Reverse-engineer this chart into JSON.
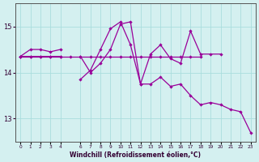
{
  "xlabel": "Windchill (Refroidissement éolien,°C)",
  "background_color": "#d4f0f0",
  "grid_color": "#aadddd",
  "line_color": "#990099",
  "x_all": [
    0,
    1,
    2,
    3,
    4,
    5,
    6,
    7,
    8,
    9,
    10,
    11,
    12,
    13,
    14,
    15,
    16,
    17,
    18,
    19,
    20,
    21,
    22,
    23
  ],
  "line_flat": [
    14.35,
    14.35,
    14.35,
    14.35,
    14.35,
    14.35,
    14.35,
    14.35,
    14.35,
    14.35,
    14.35,
    14.35,
    14.35,
    14.35,
    14.35,
    14.35,
    14.35,
    14.35,
    14.35,
    null,
    null,
    null,
    null,
    null
  ],
  "line_zigzag": [
    14.35,
    14.5,
    14.5,
    14.45,
    14.5,
    null,
    13.85,
    14.05,
    14.5,
    14.95,
    15.1,
    14.6,
    13.75,
    14.4,
    14.6,
    14.3,
    14.2,
    14.9,
    14.4,
    14.4,
    14.4,
    null,
    null,
    null
  ],
  "line_down": [
    14.35,
    14.35,
    14.35,
    14.35,
    14.35,
    null,
    14.35,
    14.0,
    14.2,
    14.5,
    15.05,
    15.1,
    13.75,
    13.75,
    13.9,
    13.7,
    13.75,
    13.5,
    13.3,
    13.35,
    13.3,
    13.2,
    13.15,
    12.7
  ],
  "ylim": [
    12.5,
    15.5
  ],
  "xlim": [
    -0.5,
    23.5
  ],
  "yticks": [
    13,
    14,
    15
  ],
  "xticks": [
    0,
    1,
    2,
    3,
    4,
    6,
    7,
    8,
    9,
    10,
    11,
    12,
    13,
    14,
    15,
    16,
    17,
    18,
    19,
    20,
    21,
    22,
    23
  ]
}
